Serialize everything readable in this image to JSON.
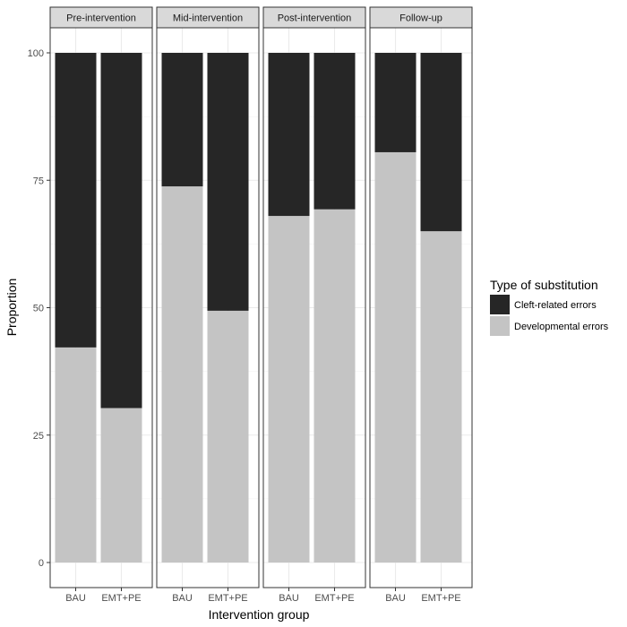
{
  "chart_data": {
    "type": "bar",
    "stacked": true,
    "facets": [
      "Pre-intervention",
      "Mid-intervention",
      "Post-intervention",
      "Follow-up"
    ],
    "categories": [
      "BAU",
      "EMT+PE"
    ],
    "xlabel": "Intervention group",
    "ylabel": "Proportion",
    "ylim": [
      0,
      100
    ],
    "yticks": [
      0,
      25,
      50,
      75,
      100
    ],
    "grid": true,
    "legend": {
      "title": "Type of substitution",
      "placement": "right",
      "entries": [
        {
          "name": "Cleft-related errors",
          "color": "#262626"
        },
        {
          "name": "Developmental errors",
          "color": "#c4c4c4"
        }
      ]
    },
    "series": [
      {
        "name": "Developmental errors",
        "color": "#c4c4c4",
        "values": [
          [
            42.2,
            30.3
          ],
          [
            73.8,
            49.4
          ],
          [
            68.0,
            69.3
          ],
          [
            80.5,
            65.0
          ]
        ]
      },
      {
        "name": "Cleft-related errors",
        "color": "#262626",
        "values": [
          [
            57.8,
            69.7
          ],
          [
            26.2,
            50.6
          ],
          [
            32.0,
            30.7
          ],
          [
            19.5,
            35.0
          ]
        ]
      }
    ]
  }
}
